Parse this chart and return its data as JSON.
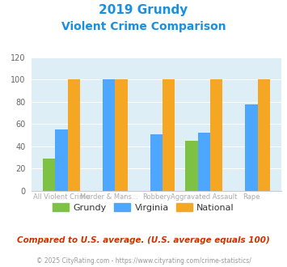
{
  "title_line1": "2019 Grundy",
  "title_line2": "Violent Crime Comparison",
  "cat_line1": [
    "",
    "Murder & Mans...",
    "",
    "Aggravated Assault",
    ""
  ],
  "cat_line2": [
    "All Violent Crime",
    "",
    "Robbery",
    "",
    "Rape"
  ],
  "grundy": [
    29,
    0,
    0,
    45,
    0
  ],
  "virginia": [
    55,
    100,
    51,
    52,
    78
  ],
  "national": [
    100,
    100,
    100,
    100,
    100
  ],
  "grundy_color": "#7dc242",
  "virginia_color": "#4da6ff",
  "national_color": "#f5a623",
  "bg_color": "#ddeef6",
  "title_color": "#1a8fe0",
  "ylabel_max": 120,
  "yticks": [
    0,
    20,
    40,
    60,
    80,
    100,
    120
  ],
  "footnote1": "Compared to U.S. average. (U.S. average equals 100)",
  "footnote2": "© 2025 CityRating.com - https://www.cityrating.com/crime-statistics/",
  "footnote1_color": "#cc3300",
  "footnote2_color": "#999999",
  "legend_labels": [
    "Grundy",
    "Virginia",
    "National"
  ]
}
